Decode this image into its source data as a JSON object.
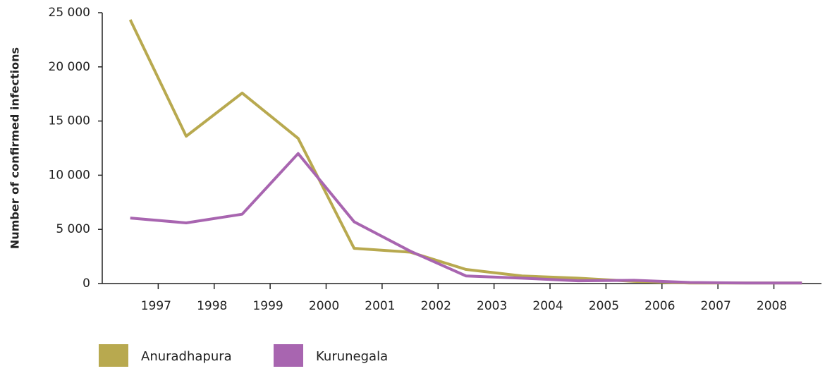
{
  "chart_data": {
    "type": "line",
    "y_label": "Number of confirmed infections",
    "x": [
      1996.5,
      1997.5,
      1998.5,
      1999.5,
      2000.5,
      2001.5,
      2002.5,
      2003.5,
      2004.5,
      2005.5,
      2006.5,
      2007.5,
      2008.5
    ],
    "series": [
      {
        "name": "Anuradhapura",
        "color": "#b8a94f",
        "values": [
          24350,
          13600,
          17580,
          13400,
          3250,
          2900,
          1300,
          700,
          500,
          200,
          50,
          50,
          50
        ]
      },
      {
        "name": "Kurunegala",
        "color": "#a865b0",
        "values": [
          6050,
          5600,
          6400,
          12000,
          5700,
          3000,
          700,
          500,
          250,
          300,
          100,
          50,
          50
        ]
      }
    ],
    "xlim": [
      1996,
      2008.85
    ],
    "xticks": [
      1997,
      1998,
      1999,
      2000,
      2001,
      2002,
      2003,
      2004,
      2005,
      2006,
      2007,
      2008
    ],
    "ylim": [
      0,
      25000
    ],
    "yticks": [
      0,
      {
        "value": 5000,
        "label": "5 000"
      },
      {
        "value": 10000,
        "label": "10 000"
      },
      {
        "value": 15000,
        "label": "15 000"
      },
      {
        "value": 20000,
        "label": "20 000"
      },
      {
        "value": 25000,
        "label": "25 000"
      }
    ],
    "grid": false
  }
}
